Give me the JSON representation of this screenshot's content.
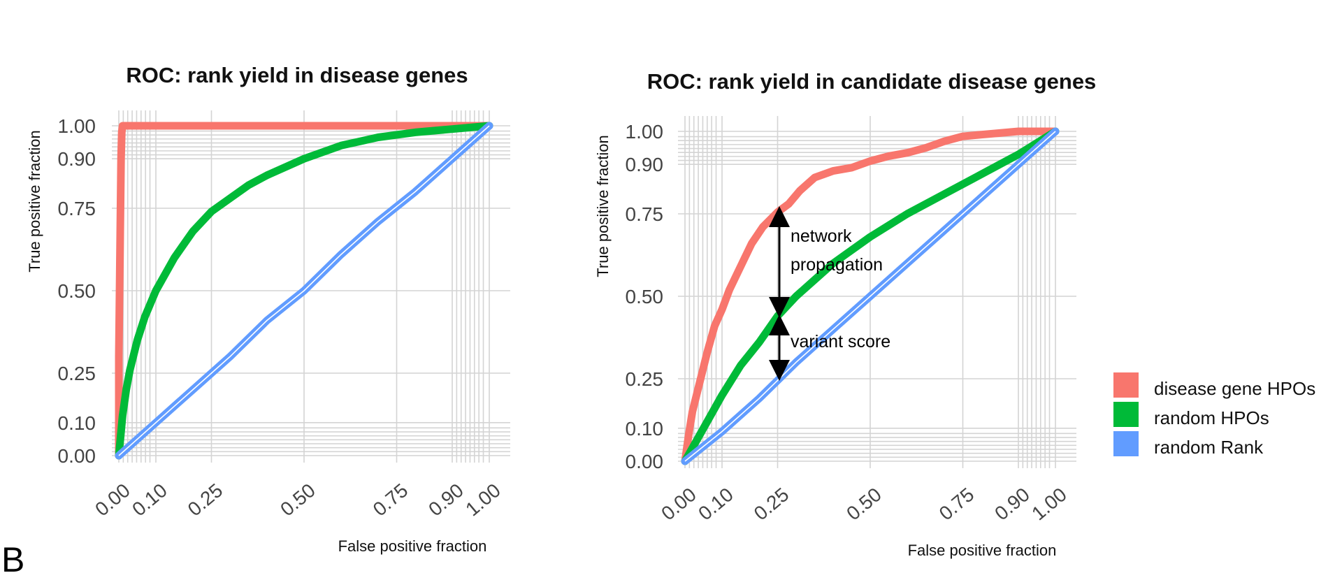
{
  "panel_letter": "B",
  "legend": {
    "items": [
      {
        "label": "disease gene HPOs",
        "color": "#F8766D"
      },
      {
        "label": "random HPOs",
        "color": "#00BA38"
      },
      {
        "label": "random Rank",
        "color": "#619CFF"
      }
    ]
  },
  "chart_data": [
    {
      "type": "line",
      "title": "ROC: rank yield in disease genes",
      "xlabel": "False positive fraction",
      "ylabel": "True positive fraction",
      "xlim": [
        0,
        1
      ],
      "ylim": [
        0,
        1
      ],
      "x_ticks": [
        "0.00",
        "0.10",
        "0.25",
        "0.50",
        "0.75",
        "0.90",
        "1.00"
      ],
      "y_ticks": [
        "0.00",
        "0.10",
        "0.25",
        "0.50",
        "0.75",
        "0.90",
        "1.00"
      ],
      "grid": true,
      "series": [
        {
          "name": "disease gene HPOs",
          "color": "#F8766D",
          "x": [
            0,
            0,
            0.003,
            0.006,
            0.008,
            0.01,
            0.2,
            0.4,
            0.6,
            0.8,
            1.0
          ],
          "y": [
            0,
            0.3,
            0.6,
            0.9,
            0.98,
            1.0,
            1.0,
            1.0,
            1.0,
            1.0,
            1.0
          ]
        },
        {
          "name": "random HPOs",
          "color": "#00BA38",
          "x": [
            0,
            0.01,
            0.02,
            0.03,
            0.05,
            0.07,
            0.1,
            0.15,
            0.2,
            0.25,
            0.3,
            0.35,
            0.4,
            0.5,
            0.6,
            0.7,
            0.8,
            0.9,
            1.0
          ],
          "y": [
            0,
            0.12,
            0.2,
            0.26,
            0.35,
            0.42,
            0.5,
            0.6,
            0.68,
            0.74,
            0.78,
            0.82,
            0.85,
            0.9,
            0.94,
            0.965,
            0.98,
            0.99,
            1.0
          ]
        },
        {
          "name": "random Rank",
          "color": "#619CFF",
          "x": [
            0,
            0.1,
            0.2,
            0.3,
            0.4,
            0.5,
            0.6,
            0.7,
            0.8,
            0.9,
            1.0
          ],
          "y": [
            0,
            0.1,
            0.2,
            0.3,
            0.41,
            0.5,
            0.61,
            0.71,
            0.8,
            0.9,
            1.0
          ]
        }
      ]
    },
    {
      "type": "line",
      "title": "ROC: rank yield in candidate disease genes",
      "xlabel": "False positive fraction",
      "ylabel": "True positive fraction",
      "xlim": [
        0,
        1
      ],
      "ylim": [
        0,
        1
      ],
      "x_ticks": [
        "0.00",
        "0.10",
        "0.25",
        "0.50",
        "0.75",
        "0.90",
        "1.00"
      ],
      "y_ticks": [
        "0.00",
        "0.10",
        "0.25",
        "0.50",
        "0.75",
        "0.90",
        "1.00"
      ],
      "grid": true,
      "series": [
        {
          "name": "disease gene HPOs",
          "color": "#F8766D",
          "x": [
            0,
            0.01,
            0.02,
            0.04,
            0.06,
            0.08,
            0.1,
            0.12,
            0.15,
            0.18,
            0.21,
            0.25,
            0.28,
            0.31,
            0.35,
            0.4,
            0.45,
            0.5,
            0.55,
            0.6,
            0.65,
            0.7,
            0.75,
            0.8,
            0.85,
            0.9,
            0.95,
            1.0
          ],
          "y": [
            0,
            0.08,
            0.15,
            0.24,
            0.33,
            0.41,
            0.46,
            0.52,
            0.59,
            0.66,
            0.71,
            0.755,
            0.78,
            0.82,
            0.86,
            0.88,
            0.89,
            0.91,
            0.925,
            0.935,
            0.95,
            0.97,
            0.985,
            0.99,
            0.995,
            1.0,
            1.0,
            1.0
          ]
        },
        {
          "name": "random HPOs",
          "color": "#00BA38",
          "x": [
            0,
            0.05,
            0.1,
            0.15,
            0.2,
            0.25,
            0.3,
            0.35,
            0.4,
            0.5,
            0.6,
            0.7,
            0.8,
            0.9,
            1.0
          ],
          "y": [
            0,
            0.1,
            0.2,
            0.29,
            0.36,
            0.44,
            0.5,
            0.55,
            0.6,
            0.68,
            0.75,
            0.81,
            0.87,
            0.93,
            1.0
          ]
        },
        {
          "name": "random Rank",
          "color": "#619CFF",
          "x": [
            0,
            0.1,
            0.2,
            0.3,
            0.4,
            0.5,
            0.6,
            0.7,
            0.8,
            0.9,
            1.0
          ],
          "y": [
            0,
            0.09,
            0.19,
            0.3,
            0.4,
            0.5,
            0.6,
            0.7,
            0.8,
            0.9,
            1.0
          ]
        }
      ],
      "annotations": [
        {
          "text": "network",
          "x": 0.25,
          "y_from": 0.75,
          "y_to": 0.47
        },
        {
          "text": "propagation"
        },
        {
          "text": "variant score",
          "x": 0.25,
          "y_from": 0.42,
          "y_to": 0.27
        }
      ]
    }
  ]
}
